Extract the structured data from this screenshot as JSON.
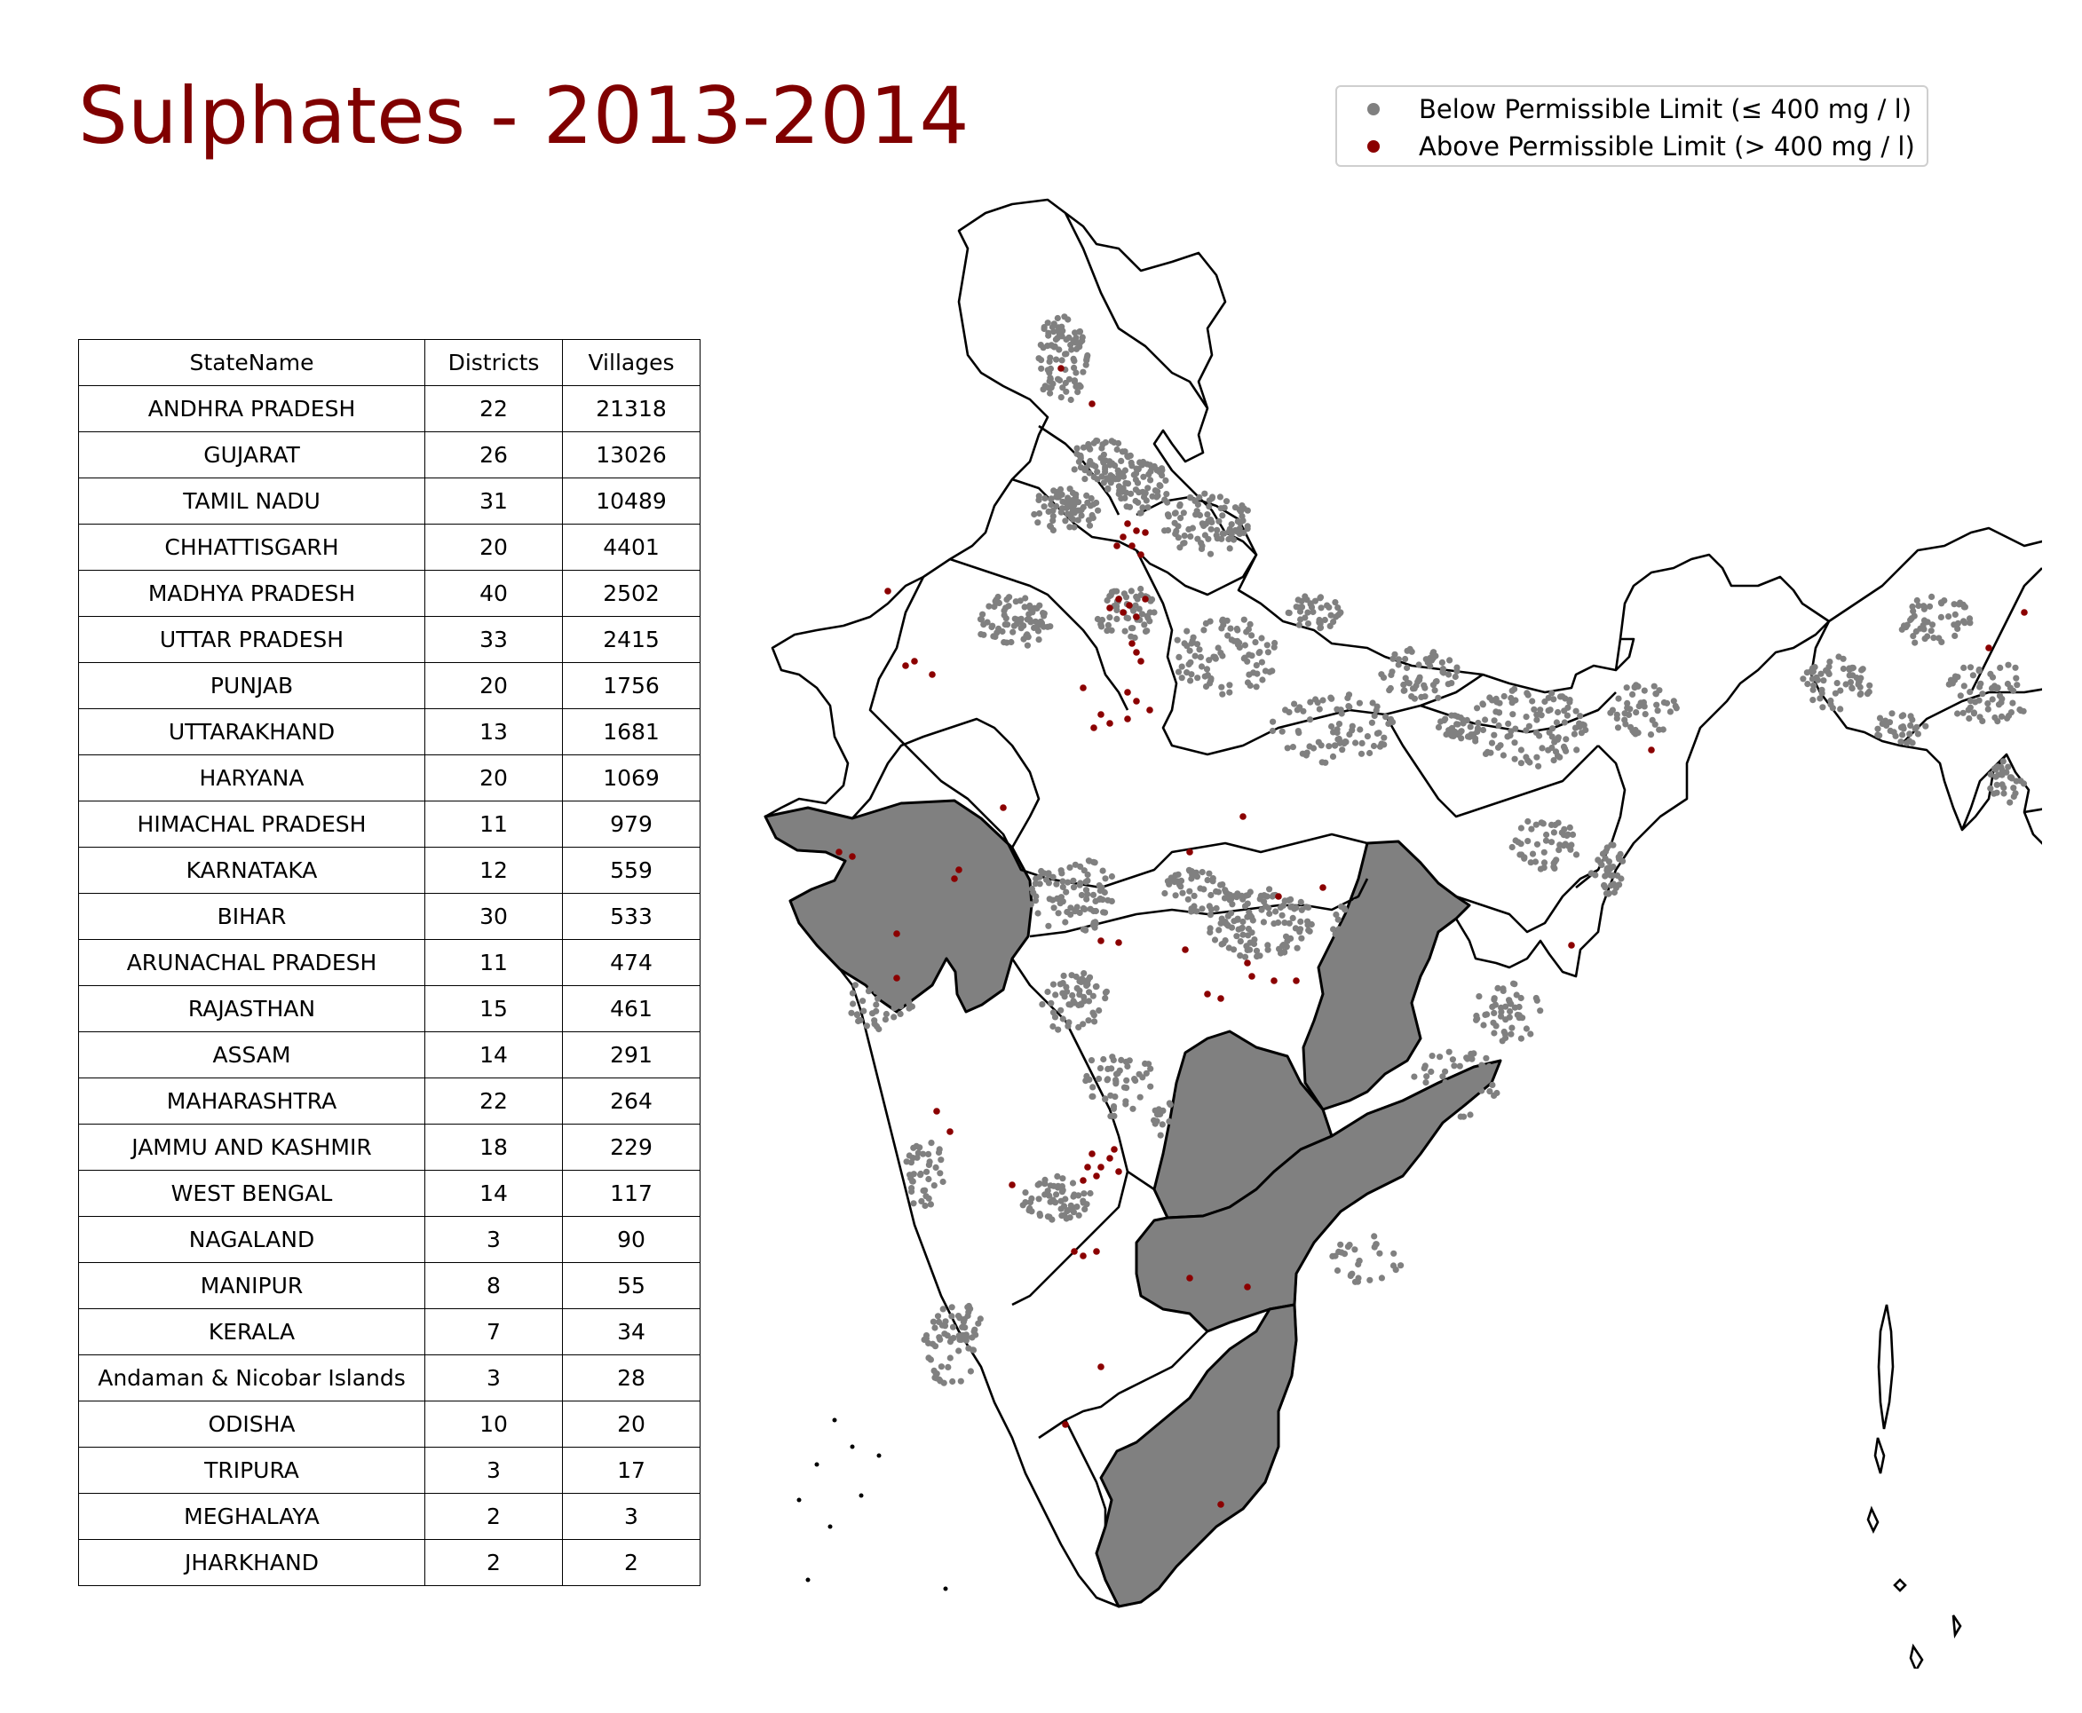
{
  "title": "Sulphates - 2013-2014",
  "legend": {
    "items": [
      {
        "label": "Below Permissible Limit (≤ 400 mg / l)",
        "color": "#808080"
      },
      {
        "label": "Above Permissible Limit (> 400 mg / l)",
        "color": "#8b0000"
      }
    ]
  },
  "table": {
    "headers": [
      "StateName",
      "Districts",
      "Villages"
    ],
    "rows": [
      [
        "ANDHRA PRADESH",
        "22",
        "21318"
      ],
      [
        "GUJARAT",
        "26",
        "13026"
      ],
      [
        "TAMIL NADU",
        "31",
        "10489"
      ],
      [
        "CHHATTISGARH",
        "20",
        "4401"
      ],
      [
        "MADHYA PRADESH",
        "40",
        "2502"
      ],
      [
        "UTTAR PRADESH",
        "33",
        "2415"
      ],
      [
        "PUNJAB",
        "20",
        "1756"
      ],
      [
        "UTTARAKHAND",
        "13",
        "1681"
      ],
      [
        "HARYANA",
        "20",
        "1069"
      ],
      [
        "HIMACHAL PRADESH",
        "11",
        "979"
      ],
      [
        "KARNATAKA",
        "12",
        "559"
      ],
      [
        "BIHAR",
        "30",
        "533"
      ],
      [
        "ARUNACHAL PRADESH",
        "11",
        "474"
      ],
      [
        "RAJASTHAN",
        "15",
        "461"
      ],
      [
        "ASSAM",
        "14",
        "291"
      ],
      [
        "MAHARASHTRA",
        "22",
        "264"
      ],
      [
        "JAMMU AND KASHMIR",
        "18",
        "229"
      ],
      [
        "WEST BENGAL",
        "14",
        "117"
      ],
      [
        "NAGALAND",
        "3",
        "90"
      ],
      [
        "MANIPUR",
        "8",
        "55"
      ],
      [
        "KERALA",
        "7",
        "34"
      ],
      [
        "Andaman & Nicobar Islands",
        "3",
        "28"
      ],
      [
        "ODISHA",
        "10",
        "20"
      ],
      [
        "TRIPURA",
        "3",
        "17"
      ],
      [
        "MEGHALAYA",
        "2",
        "3"
      ],
      [
        "JHARKHAND",
        "2",
        "2"
      ]
    ]
  },
  "map": {
    "below_color": "#808080",
    "above_color": "#8b0000",
    "outline_color": "#000000"
  }
}
